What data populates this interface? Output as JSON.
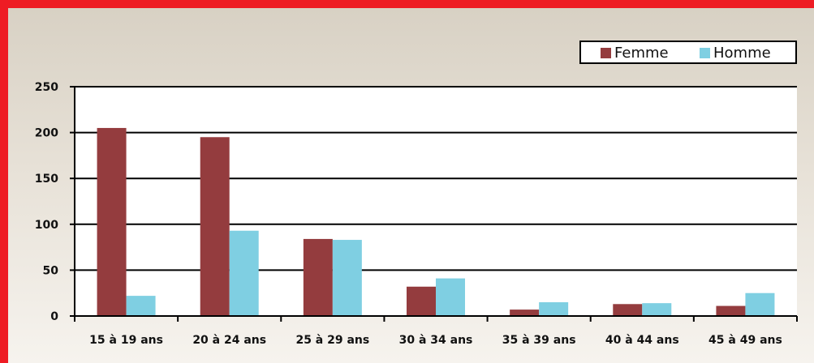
{
  "chart_data": {
    "type": "bar",
    "title": "",
    "xlabel": "",
    "ylabel": "",
    "categories": [
      "15 à 19 ans",
      "20 à 24 ans",
      "25 à 29 ans",
      "30 à 34 ans",
      "35 à 39 ans",
      "40 à 44 ans",
      "45 à 49 ans"
    ],
    "series": [
      {
        "name": "Femme",
        "color": "#943c3e",
        "values": [
          205,
          195,
          84,
          32,
          7,
          13,
          11
        ]
      },
      {
        "name": "Homme",
        "color": "#7fcfe2",
        "values": [
          22,
          93,
          83,
          41,
          15,
          14,
          25
        ]
      }
    ],
    "ylim": [
      0,
      250
    ],
    "yticks": [
      "0",
      "50",
      "100",
      "150",
      "200",
      "250"
    ],
    "grid": true,
    "legend": "top-right"
  },
  "colors": {
    "frame": "#ee1c24",
    "plot_background": "#ffffff",
    "axis": "#000000"
  }
}
